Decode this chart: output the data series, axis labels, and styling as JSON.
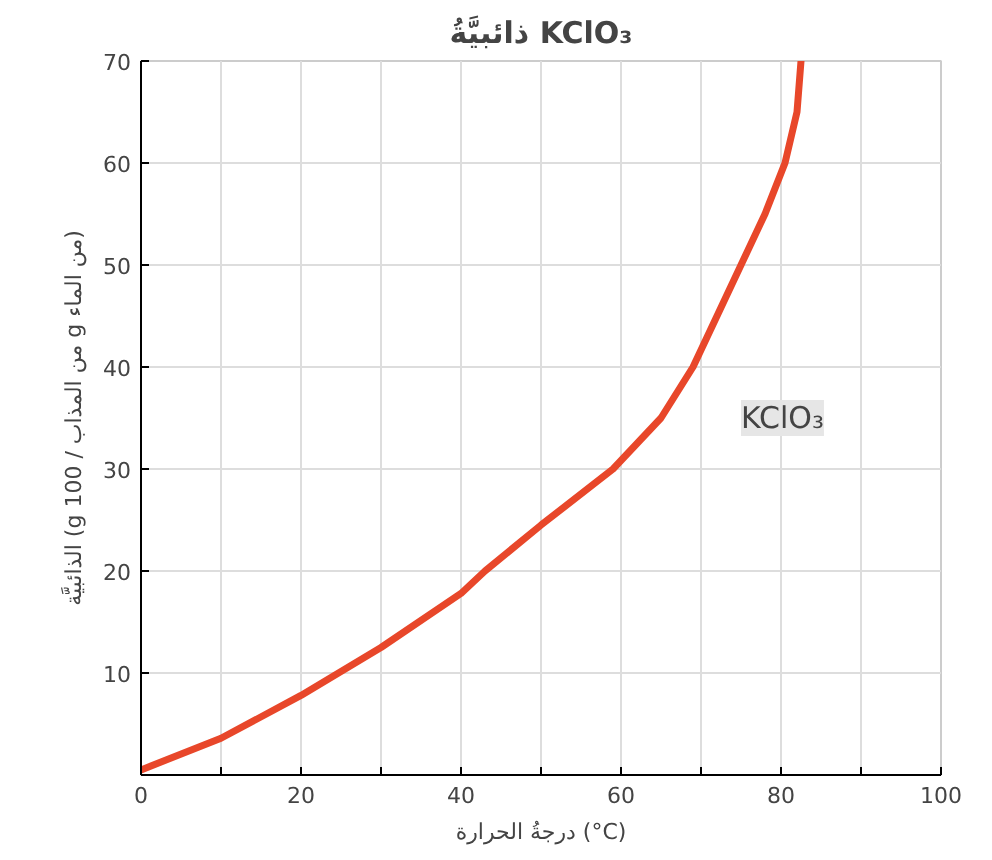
{
  "chart_data": {
    "type": "line",
    "title": "ذائبيَّةُ KClO₃",
    "xlabel": "درجةُ الحرارة (°C)",
    "ylabel": "الذائبيَّة (g من المذاب / 100 g من الماء)",
    "x": [
      0,
      10,
      20,
      30,
      40,
      43,
      50,
      59,
      65,
      69,
      72,
      75,
      78,
      80.5,
      82,
      82.5
    ],
    "series": [
      {
        "name": "KClO₃",
        "color": "#e8472a",
        "values": [
          0.5,
          3.6,
          7.8,
          12.5,
          17.8,
          20,
          24.5,
          30,
          35,
          40,
          45,
          50,
          55,
          60,
          65,
          70
        ]
      }
    ],
    "xlim": [
      0,
      100
    ],
    "ylim": [
      0,
      70
    ],
    "xticks": [
      0,
      {
        "value": 10,
        "label": null
      },
      20,
      {
        "value": 30,
        "label": null
      },
      40,
      {
        "value": 50,
        "label": null
      },
      60,
      {
        "value": 70,
        "label": null
      },
      80,
      {
        "value": 90,
        "label": null
      },
      100
    ],
    "yticks": [
      10,
      20,
      30,
      40,
      50,
      60,
      70
    ],
    "grid": true
  }
}
